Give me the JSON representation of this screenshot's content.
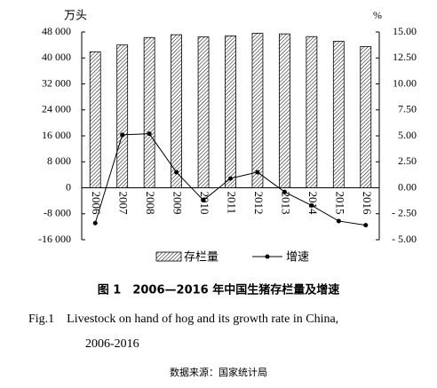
{
  "chart_data": {
    "type": "bar-line",
    "y_unit": "万头",
    "y2_unit": "%",
    "categories": [
      "2006",
      "2007",
      "2008",
      "2009",
      "2010",
      "2011",
      "2012",
      "2013",
      "2014",
      "2015",
      "2016"
    ],
    "series": [
      {
        "name": "存栏量",
        "type": "bar",
        "color": "#000000",
        "values": [
          41900,
          43990,
          46290,
          47160,
          46460,
          46770,
          47590,
          47410,
          46580,
          45110,
          43500
        ]
      },
      {
        "name": "增速",
        "type": "line",
        "axis": "y2",
        "color": "#000000",
        "values": [
          -3.4,
          5.1,
          5.2,
          1.5,
          -1.2,
          0.9,
          1.5,
          -0.4,
          -1.7,
          -3.2,
          -3.6
        ]
      }
    ],
    "ylim": [
      -16000,
      48000
    ],
    "yticks": [
      {
        "value": -16000,
        "label": "-16 000"
      },
      {
        "value": -8000,
        "label": "-8 000"
      },
      0,
      {
        "value": 8000,
        "label": "8 000"
      },
      {
        "value": 16000,
        "label": "16 000"
      },
      {
        "value": 24000,
        "label": "24 000"
      },
      {
        "value": 32000,
        "label": "32 000"
      },
      {
        "value": 40000,
        "label": "40 000"
      },
      {
        "value": 48000,
        "label": "48 000"
      }
    ],
    "y2lim": [
      -5,
      15
    ],
    "y2ticks": [
      {
        "value": -5,
        "label": "- 5.00"
      },
      {
        "value": -2.5,
        "label": "- 2.50"
      },
      {
        "value": 0,
        "label": "0.00"
      },
      {
        "value": 2.5,
        "label": "2.50"
      },
      {
        "value": 5,
        "label": "5.00"
      },
      {
        "value": 7.5,
        "label": "7.50"
      },
      {
        "value": 10,
        "label": "10.00"
      },
      {
        "value": 12.5,
        "label": "12.50"
      },
      {
        "value": 15,
        "label": "15.00"
      }
    ]
  },
  "caption": {
    "zh": "图 1　2006—2016 年中国生猪存栏量及增速",
    "en_line1": "Fig.1　Livestock on hand of hog and its growth rate in China,",
    "en_line2": "2006-2016",
    "source": "数据来源：国家统计局"
  }
}
